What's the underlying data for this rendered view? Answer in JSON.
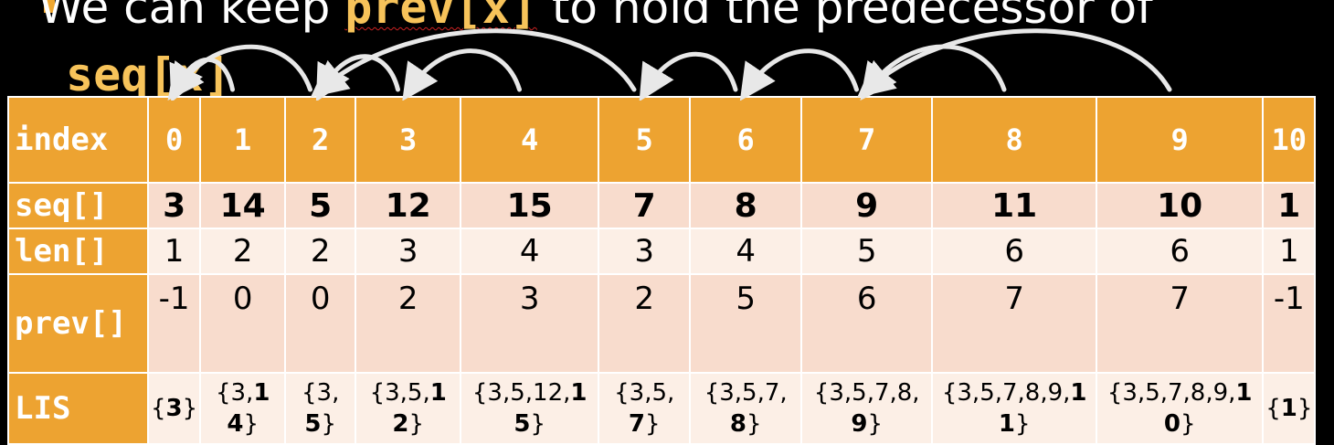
{
  "bullet": {
    "prefix": "We can keep ",
    "code1": "prev[x]",
    "middle": " to hold the predecessor of",
    "code2": "seq[x]"
  },
  "table": {
    "row_headers": {
      "index": "index",
      "seq": "seq[]",
      "len": "len[]",
      "prev": "prev[]",
      "lis": "LIS"
    },
    "indices": [
      "0",
      "1",
      "2",
      "3",
      "4",
      "5",
      "6",
      "7",
      "8",
      "9",
      "10"
    ],
    "seq": [
      "3",
      "14",
      "5",
      "12",
      "15",
      "7",
      "8",
      "9",
      "11",
      "10",
      "1"
    ],
    "len": [
      "1",
      "2",
      "2",
      "3",
      "4",
      "3",
      "4",
      "5",
      "6",
      "6",
      "1"
    ],
    "prev": [
      "-1",
      "0",
      "0",
      "2",
      "3",
      "2",
      "5",
      "6",
      "7",
      "7",
      "-1"
    ],
    "lis": [
      {
        "head": "{",
        "last": "3",
        "tail": "}"
      },
      {
        "head": "{3,",
        "last": "14",
        "tail": "}"
      },
      {
        "head": "{3,",
        "last": "5",
        "tail": "}"
      },
      {
        "head": "{3,5,",
        "last": "12",
        "tail": "}"
      },
      {
        "head": "{3,5,12,",
        "last": "15",
        "tail": "}"
      },
      {
        "head": "{3,5,",
        "last": "7",
        "tail": "}"
      },
      {
        "head": "{3,5,7,",
        "last": "8",
        "tail": "}"
      },
      {
        "head": "{3,5,7,8,",
        "last": "9",
        "tail": "}"
      },
      {
        "head": "{3,5,7,8,9,",
        "last": "11",
        "tail": "}"
      },
      {
        "head": "{3,5,7,8,9,",
        "last": "10",
        "tail": "}"
      },
      {
        "head": "{",
        "last": "1",
        "tail": "}"
      }
    ]
  },
  "colors": {
    "header_orange": "#eda331",
    "row_dark": "#f8dccd",
    "row_light": "#fcefe6",
    "code_yellow": "#f7c35a",
    "arrow": "#e8e8e8"
  }
}
